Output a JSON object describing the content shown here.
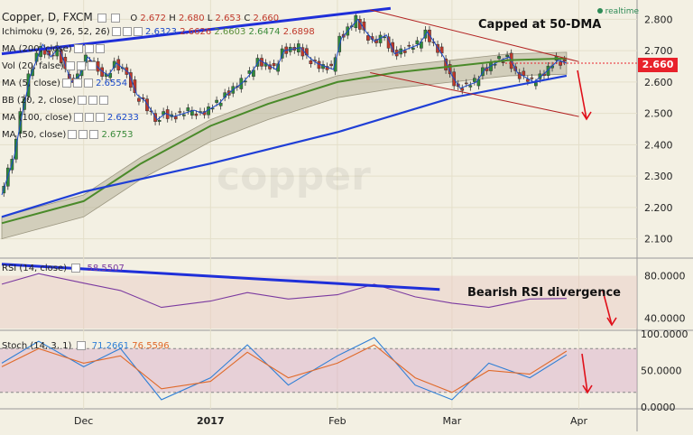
{
  "header": {
    "symbol": "Copper, D, FXCM",
    "ohlc_label_o": "O",
    "ohlc_o": "2.672",
    "ohlc_label_h": "H",
    "ohlc_h": "2.680",
    "ohlc_label_l": "L",
    "ohlc_l": "2.653",
    "ohlc_label_c": "C",
    "ohlc_c": "2.660"
  },
  "legends": [
    {
      "label": "Ichimoku (9, 26, 52, 26)",
      "values": [
        "2.6323",
        "2.6626",
        "2.6603",
        "2.6474",
        "2.6898"
      ],
      "colors": [
        "#1a49c9",
        "#c0392b",
        "#5a8e3a",
        "#3a8a3a",
        "#c0392b"
      ]
    },
    {
      "label": "MA (200, close)",
      "values": [],
      "colors": []
    },
    {
      "label": "Vol (20, false)",
      "values": [],
      "colors": []
    },
    {
      "label": "MA (5, close)",
      "values": [
        "2.6554"
      ],
      "colors": [
        "#1a49c9"
      ]
    },
    {
      "label": "BB (20, 2, close)",
      "values": [],
      "colors": []
    },
    {
      "label": "MA (100, close)",
      "values": [
        "2.6233"
      ],
      "colors": [
        "#1a49c9"
      ]
    },
    {
      "label": "MA (50, close)",
      "values": [
        "2.6753"
      ],
      "colors": [
        "#3a8a3a"
      ]
    }
  ],
  "realtime_label": "realtime",
  "current_price": "2.660",
  "annotations": {
    "capped": "Capped at 50-DMA",
    "rsi_div": "Bearish RSI divergence"
  },
  "rsi_legend": {
    "label": "RSI (14, close)",
    "value": "58.5507"
  },
  "stoch_legend": {
    "label": "Stoch (14, 3, 1)",
    "k": "71.2661",
    "d": "76.5596"
  },
  "watermark": "copper",
  "colors": {
    "up_candle": "#2e8b3a",
    "down_candle": "#c0392b",
    "ma5": "#1a49c9",
    "ma50": "#4a8a2a",
    "ma100": "#1f3fd6",
    "trendline": "#1f2fd9",
    "channel": "#b22222",
    "cloud_fill": "#b7b39a",
    "rsi_line": "#7b3aa0",
    "stoch_k": "#2f7fd6",
    "stoch_d": "#e06a2a",
    "price_box": "#e8222b"
  },
  "chart_data": [
    {
      "type": "candlestick",
      "title": "Copper, D, FXCM",
      "ylim": [
        2.05,
        2.85
      ],
      "y_ticks": [
        "2.800",
        "2.700",
        "2.600",
        "2.500",
        "2.400",
        "2.300",
        "2.200",
        "2.100"
      ],
      "x_ticks": [
        "Dec",
        "2017",
        "Feb",
        "Mar",
        "Apr"
      ],
      "x_tick_dates": [
        "2016-12-01",
        "2017-01-01",
        "2017-02-01",
        "2017-03-01",
        "2017-04-01"
      ],
      "x_range": [
        "2016-11-11",
        "2017-04-15"
      ],
      "close_path_dates": [
        "2016-11-11",
        "2016-11-14",
        "2016-11-16",
        "2016-11-18",
        "2016-11-21",
        "2016-11-23",
        "2016-11-25",
        "2016-11-28",
        "2016-11-30",
        "2016-12-02",
        "2016-12-05",
        "2016-12-07",
        "2016-12-09",
        "2016-12-12",
        "2016-12-14",
        "2016-12-16",
        "2016-12-19",
        "2016-12-21",
        "2016-12-23",
        "2016-12-28",
        "2016-12-30",
        "2017-01-03",
        "2017-01-05",
        "2017-01-09",
        "2017-01-11",
        "2017-01-13",
        "2017-01-17",
        "2017-01-19",
        "2017-01-23",
        "2017-01-25",
        "2017-01-27",
        "2017-01-31",
        "2017-02-02",
        "2017-02-06",
        "2017-02-08",
        "2017-02-10",
        "2017-02-13",
        "2017-02-15",
        "2017-02-17",
        "2017-02-21",
        "2017-02-23",
        "2017-02-27",
        "2017-03-01",
        "2017-03-03",
        "2017-03-07",
        "2017-03-09",
        "2017-03-13",
        "2017-03-15",
        "2017-03-17",
        "2017-03-21",
        "2017-03-23",
        "2017-03-27",
        "2017-03-29"
      ],
      "close_path_values": [
        2.24,
        2.36,
        2.5,
        2.62,
        2.72,
        2.68,
        2.71,
        2.6,
        2.62,
        2.68,
        2.64,
        2.62,
        2.66,
        2.63,
        2.56,
        2.54,
        2.48,
        2.5,
        2.49,
        2.51,
        2.5,
        2.53,
        2.56,
        2.6,
        2.63,
        2.67,
        2.64,
        2.7,
        2.71,
        2.68,
        2.66,
        2.64,
        2.74,
        2.8,
        2.76,
        2.73,
        2.75,
        2.69,
        2.7,
        2.72,
        2.76,
        2.68,
        2.62,
        2.58,
        2.6,
        2.64,
        2.67,
        2.68,
        2.63,
        2.6,
        2.62,
        2.67,
        2.66
      ],
      "ma50_dates": [
        "2016-11-11",
        "2016-12-01",
        "2016-12-15",
        "2017-01-01",
        "2017-01-15",
        "2017-02-01",
        "2017-02-15",
        "2017-03-01",
        "2017-03-15",
        "2017-03-29"
      ],
      "ma50_values": [
        2.15,
        2.22,
        2.34,
        2.46,
        2.53,
        2.6,
        2.63,
        2.65,
        2.67,
        2.675
      ],
      "ma100_dates": [
        "2016-11-11",
        "2016-12-01",
        "2017-01-01",
        "2017-02-01",
        "2017-03-01",
        "2017-03-29"
      ],
      "ma100_values": [
        2.17,
        2.25,
        2.34,
        2.44,
        2.55,
        2.62
      ],
      "trendline_top_dates": [
        "2016-11-11",
        "2017-02-14"
      ],
      "trendline_top_values": [
        2.69,
        2.835
      ],
      "channel_upper_dates": [
        "2017-02-09",
        "2017-04-01"
      ],
      "channel_upper_values": [
        2.83,
        2.665
      ],
      "channel_lower_dates": [
        "2017-02-09",
        "2017-04-01"
      ],
      "channel_lower_values": [
        2.63,
        2.49
      ]
    },
    {
      "type": "line",
      "title": "RSI (14, close)",
      "ylim": [
        30,
        95
      ],
      "y_ticks": [
        "80.0000",
        "40.0000"
      ],
      "x": [
        "2016-11-11",
        "2016-11-20",
        "2016-12-01",
        "2016-12-10",
        "2016-12-20",
        "2017-01-01",
        "2017-01-10",
        "2017-01-20",
        "2017-02-01",
        "2017-02-10",
        "2017-02-20",
        "2017-03-01",
        "2017-03-10",
        "2017-03-20",
        "2017-03-29"
      ],
      "values": [
        72,
        82,
        73,
        66,
        50,
        56,
        64,
        58,
        62,
        72,
        60,
        54,
        50,
        58,
        58.5
      ],
      "trendline_dates": [
        "2016-11-11",
        "2017-02-26"
      ],
      "trendline_values": [
        91,
        67
      ]
    },
    {
      "type": "line",
      "title": "Stoch (14, 3, 1)",
      "ylim": [
        0,
        100
      ],
      "y_ticks": [
        "100.0000",
        "50.0000",
        "0.0000"
      ],
      "x": [
        "2016-11-11",
        "2016-11-20",
        "2016-12-01",
        "2016-12-10",
        "2016-12-20",
        "2017-01-01",
        "2017-01-10",
        "2017-01-20",
        "2017-02-01",
        "2017-02-10",
        "2017-02-20",
        "2017-03-01",
        "2017-03-10",
        "2017-03-20",
        "2017-03-29"
      ],
      "k_values": [
        60,
        90,
        55,
        80,
        10,
        40,
        85,
        30,
        70,
        95,
        30,
        10,
        60,
        40,
        71.3
      ],
      "d_values": [
        55,
        80,
        60,
        70,
        25,
        35,
        75,
        40,
        60,
        85,
        40,
        20,
        50,
        45,
        76.6
      ]
    }
  ]
}
